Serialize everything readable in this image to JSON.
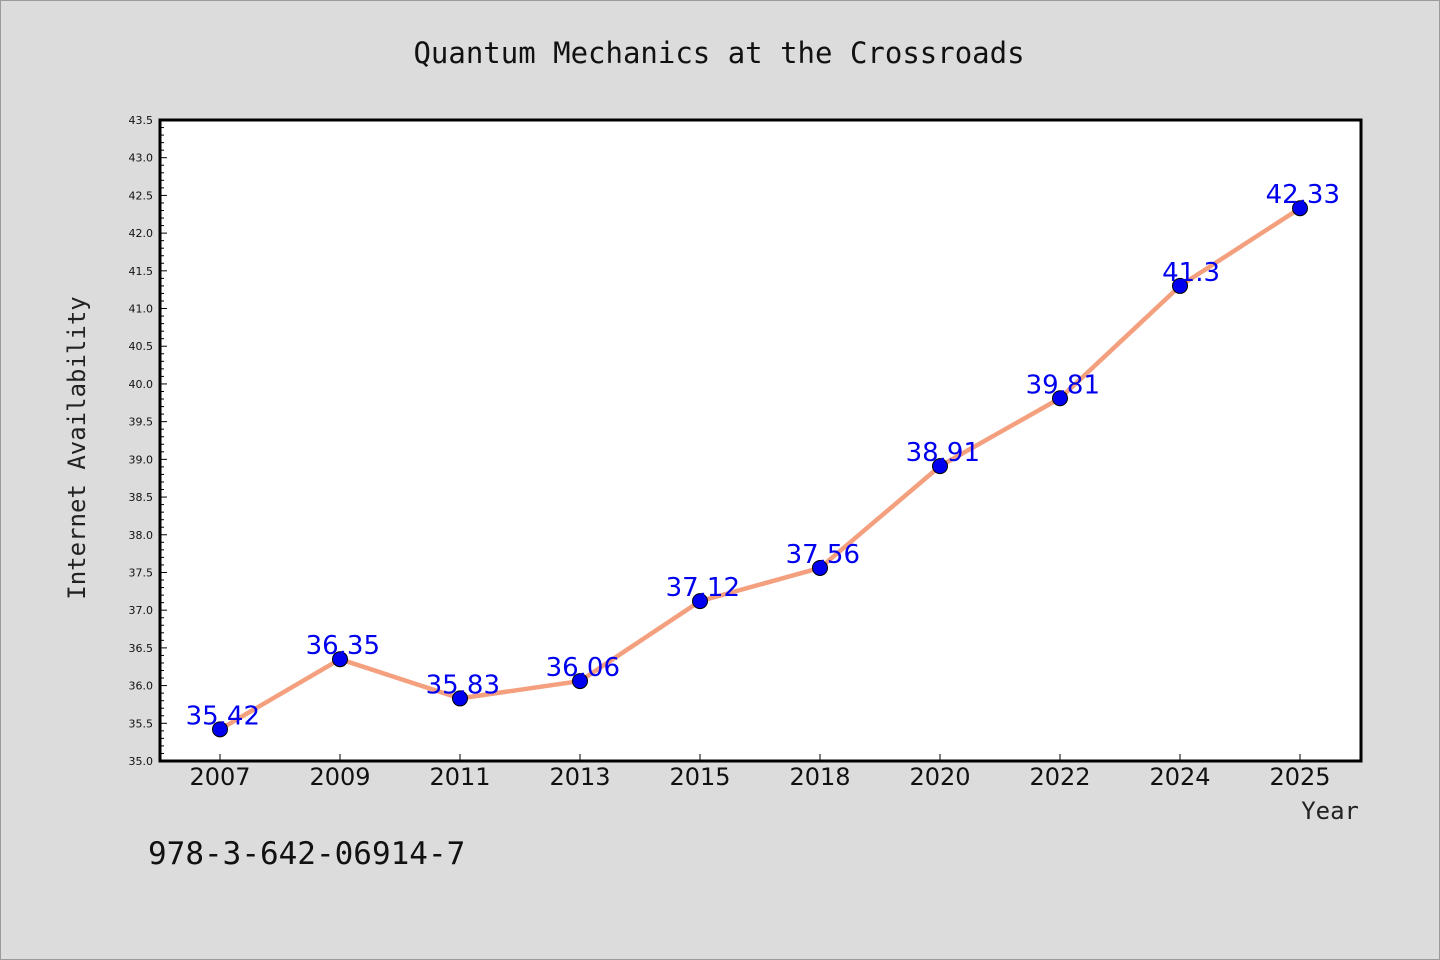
{
  "chart_data": {
    "type": "line",
    "title": "Quantum Mechanics at the Crossroads",
    "xlabel": "Year",
    "ylabel": "Internet Availability",
    "categories": [
      "2007",
      "2009",
      "2011",
      "2013",
      "2015",
      "2018",
      "2020",
      "2022",
      "2024",
      "2025"
    ],
    "series": [
      {
        "values": [
          35.42,
          36.35,
          35.83,
          36.06,
          37.12,
          37.56,
          38.91,
          39.81,
          41.3,
          42.33
        ],
        "data_labels": [
          "35.42",
          "36.35",
          "35.83",
          "36.06",
          "37.12",
          "37.56",
          "38.91",
          "39.81",
          "41.3",
          "42.33"
        ]
      }
    ],
    "ylim": [
      35.0,
      43.5
    ],
    "yticks": [
      "35.0",
      "35.5",
      "36.0",
      "36.5",
      "37.0",
      "37.5",
      "38.0",
      "38.5",
      "39.0",
      "39.5",
      "40.0",
      "40.5",
      "41.0",
      "41.5",
      "42.0",
      "42.5",
      "43.0",
      "43.5"
    ],
    "grid": false,
    "legend": "none",
    "colors": {
      "line": "#f4a07e",
      "marker": "#0000ee",
      "label": "#0000ee",
      "background": "#dcdcdc",
      "plot_background": "#ffffff"
    }
  },
  "footer": {
    "isbn": "978-3-642-06914-7"
  }
}
